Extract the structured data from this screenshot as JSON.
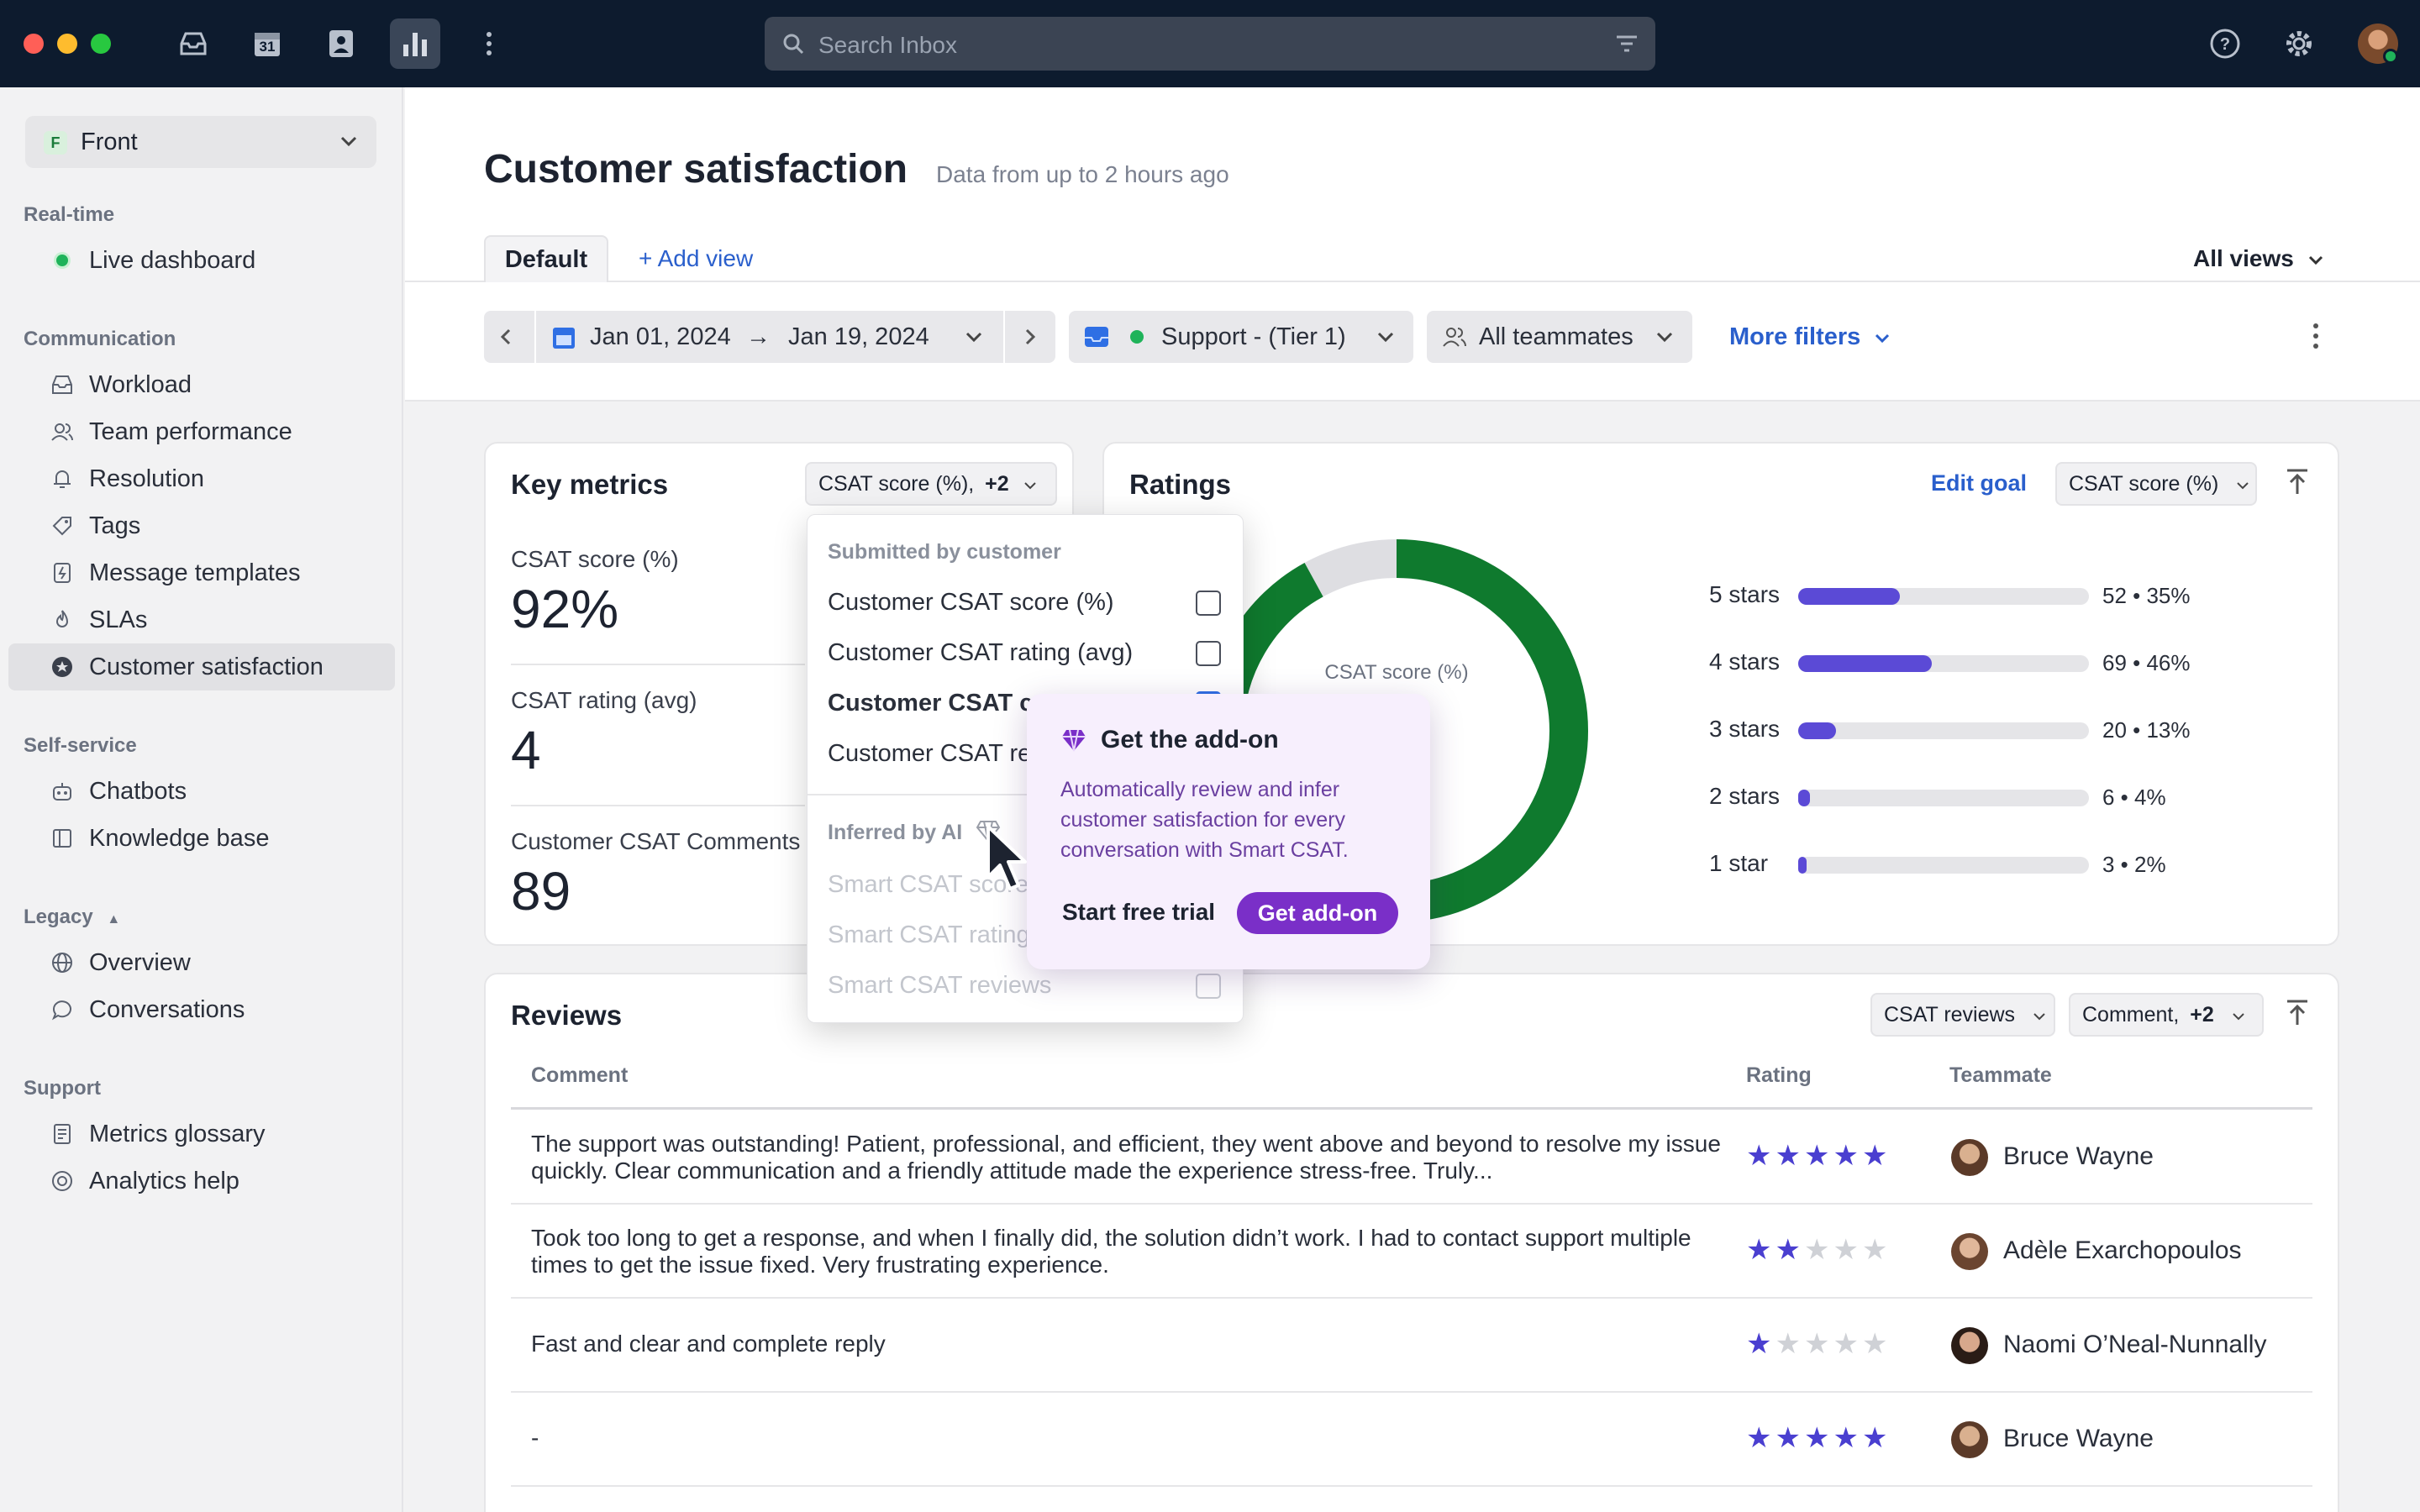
{
  "topbar": {
    "search_placeholder": "Search Inbox",
    "icons": [
      "inbox-icon",
      "calendar-icon",
      "contacts-icon",
      "analytics-icon",
      "more-icon"
    ],
    "calendar_day": "31"
  },
  "sidebar": {
    "workspace": {
      "badge": "F",
      "name": "Front"
    },
    "sections": {
      "realtime": "Real-time",
      "communication": "Communication",
      "selfservice": "Self-service",
      "legacy": "Legacy",
      "support": "Support"
    },
    "items": {
      "live_dashboard": "Live dashboard",
      "workload": "Workload",
      "team_performance": "Team performance",
      "resolution": "Resolution",
      "tags": "Tags",
      "message_templates": "Message templates",
      "slas": "SLAs",
      "customer_satisfaction": "Customer satisfaction",
      "chatbots": "Chatbots",
      "knowledge_base": "Knowledge base",
      "overview": "Overview",
      "conversations": "Conversations",
      "metrics_glossary": "Metrics glossary",
      "analytics_help": "Analytics help"
    }
  },
  "header": {
    "title": "Customer satisfaction",
    "subtitle": "Data from up to 2 hours ago",
    "tab_default": "Default",
    "add_view": "+ Add view",
    "all_views": "All views"
  },
  "filters": {
    "date_start": "Jan 01, 2024",
    "date_end": "Jan 19, 2024",
    "inbox": "Support -  (Tier 1)",
    "teammates": "All teammates",
    "more": "More filters"
  },
  "key_metrics": {
    "title": "Key metrics",
    "selector": "CSAT score (%),",
    "selector_extra": "+2",
    "metrics": [
      {
        "label": "CSAT score (%)",
        "value": "92%"
      },
      {
        "label": "CSAT rating (avg)",
        "value": "4"
      },
      {
        "label": "Customer CSAT Comments",
        "value": "89"
      }
    ]
  },
  "ratings": {
    "title": "Ratings",
    "edit_goal": "Edit goal",
    "selector": "CSAT score (%)",
    "donut_label": "CSAT score (%)",
    "donut_fraction": 0.92,
    "colors": {
      "good": "#0f7a2e",
      "bar": "#5b4ad6",
      "track": "#e5e5e8"
    },
    "rows": [
      {
        "label": "5 stars",
        "value": "52 • 35%",
        "pct": 35
      },
      {
        "label": "4 stars",
        "value": "69 • 46%",
        "pct": 46
      },
      {
        "label": "3 stars",
        "value": "20 • 13%",
        "pct": 13
      },
      {
        "label": "2 stars",
        "value": "6 • 4%",
        "pct": 4
      },
      {
        "label": "1 star",
        "value": "3 • 2%",
        "pct": 2
      }
    ]
  },
  "reviews": {
    "title": "Reviews",
    "selector1": "CSAT reviews",
    "selector2": "Comment,",
    "selector2_extra": "+2",
    "columns": [
      "Comment",
      "Rating",
      "Teammate"
    ],
    "rows": [
      {
        "comment": "The support was outstanding! Patient, professional, and efficient, they went above and beyond to resolve my issue quickly. Clear communication and a friendly attitude made the experience stress-free. Truly...",
        "rating": 5,
        "teammate": "Bruce Wayne"
      },
      {
        "comment": "Took too long to get a response, and when I finally did, the solution didn’t work. I had to contact support multiple times to get the issue fixed. Very frustrating experience.",
        "rating": 2,
        "teammate": "Adèle Exarchopoulos"
      },
      {
        "comment": "Fast and clear and complete reply",
        "rating": 1,
        "teammate": "Naomi O’Neal-Nunnally"
      },
      {
        "comment": "-",
        "rating": 5,
        "teammate": "Bruce Wayne"
      }
    ]
  },
  "dropdown": {
    "section1": "Submitted by customer",
    "items1": [
      "Customer CSAT score (%)",
      "Customer CSAT rating (avg)",
      "Customer CSAT co",
      "Customer CSAT re"
    ],
    "section2": "Inferred by AI",
    "items2": [
      "Smart CSAT score",
      "Smart CSAT rating",
      "Smart CSAT reviews"
    ]
  },
  "addon": {
    "title": "Get the add-on",
    "body": "Automatically review and infer customer satisfaction for every conversation with Smart CSAT.",
    "trial": "Start free trial",
    "cta": "Get add-on"
  }
}
